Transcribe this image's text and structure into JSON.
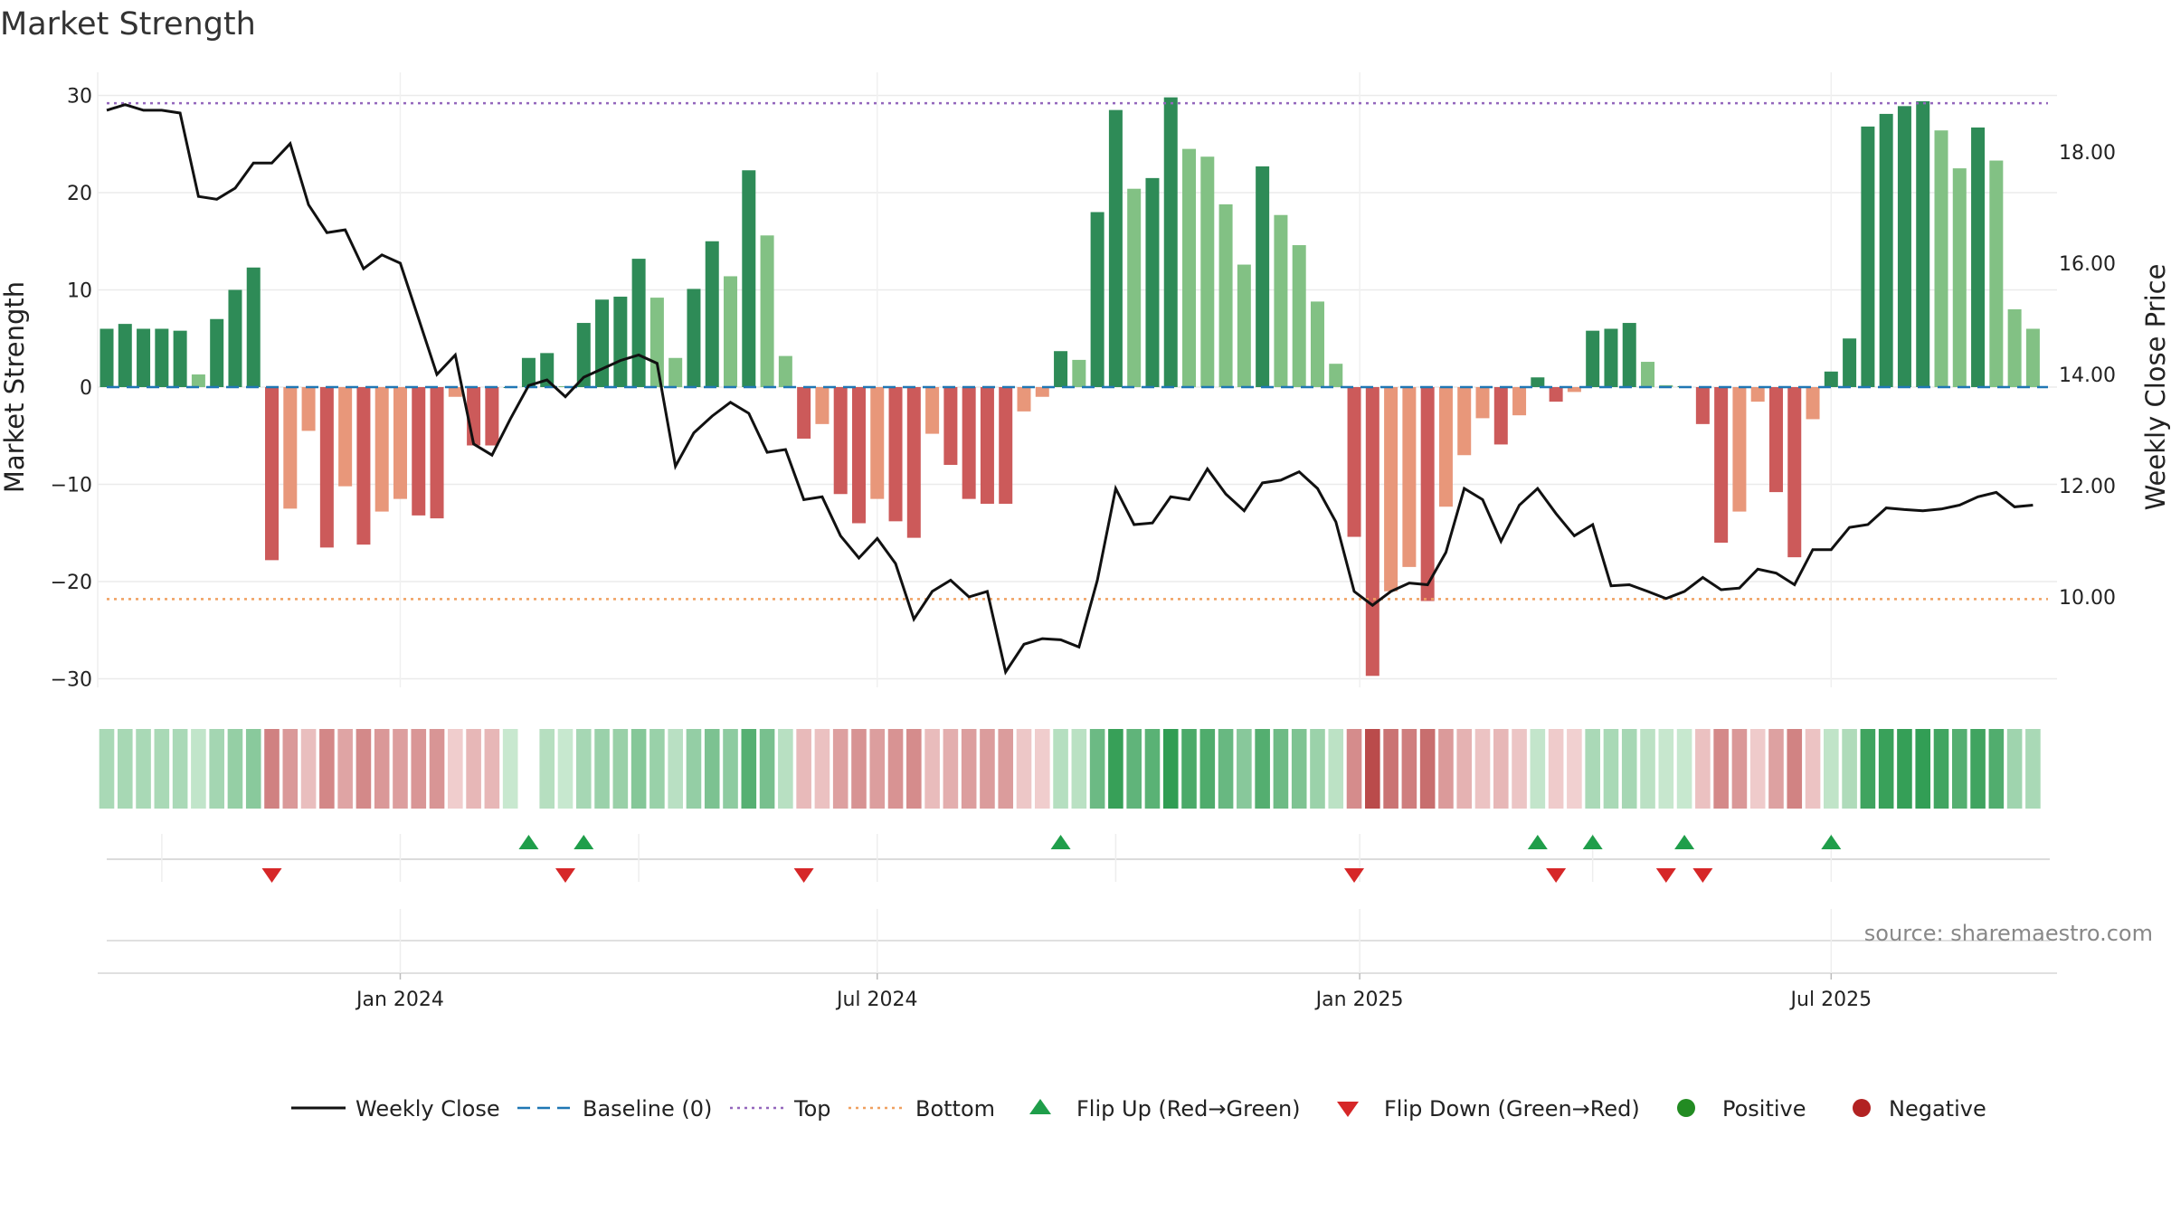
{
  "chart_data": {
    "type": "bar+line",
    "title": "Market Strength",
    "ylabel_left": "Market Strength",
    "ylabel_right": "Weekly Close Price",
    "ylim_left": [
      -35,
      32
    ],
    "ylim_right": [
      8.2,
      19.0
    ],
    "yticks_left": [
      "30",
      "20",
      "10",
      "0",
      "−10",
      "−20",
      "−30"
    ],
    "yticks_left_values": [
      30,
      20,
      10,
      0,
      -10,
      -20,
      -30
    ],
    "yticks_right": [
      "18.00",
      "16.00",
      "14.00",
      "12.00",
      "10.00"
    ],
    "yticks_right_values": [
      18,
      16,
      14,
      12,
      10
    ],
    "x_tick_labels": [
      "Jan 2024",
      "Jul 2024",
      "Jan 2025",
      "Jul 2025"
    ],
    "x_tick_weeks": [
      16,
      42,
      68.3,
      94
    ],
    "top_line": 29.2,
    "bottom_line": -21.8,
    "strength": [
      6,
      6.5,
      6,
      6,
      5.8,
      1.3,
      7,
      10,
      12.3,
      -17.8,
      -12.5,
      -4.5,
      -16.5,
      -10.2,
      -16.2,
      -12.8,
      -11.5,
      -13.2,
      -13.5,
      -1,
      -6,
      -6,
      0,
      3,
      3.5,
      0.1,
      6.6,
      9,
      9.3,
      13.2,
      9.2,
      3,
      10.1,
      15,
      11.4,
      22.3,
      15.6,
      3.2,
      -5.3,
      -3.8,
      -11,
      -14,
      -11.5,
      -13.8,
      -15.5,
      -4.8,
      -8,
      -11.5,
      -12,
      -12,
      -2.5,
      -1,
      3.7,
      2.8,
      18,
      28.5,
      20.4,
      21.5,
      29.8,
      24.5,
      23.7,
      18.8,
      12.6,
      22.7,
      17.7,
      14.6,
      8.8,
      2.4,
      -15.4,
      -29.7,
      -21,
      -18.5,
      -22,
      -12.3,
      -7,
      -3.2,
      -5.9,
      -2.9,
      1,
      -1.5,
      -0.5,
      5.8,
      6,
      6.6,
      2.6,
      0.2,
      0.1,
      -3.8,
      -16,
      -12.8,
      -1.5,
      -10.8,
      -17.5,
      -3.3,
      1.6,
      5,
      26.8,
      28.1,
      28.9,
      29.4,
      26.4,
      22.5,
      26.7,
      23.3,
      8,
      6
    ],
    "weekly_close": [
      18.75,
      18.85,
      18.75,
      18.75,
      18.7,
      17.2,
      17.15,
      17.35,
      17.8,
      17.8,
      18.15,
      17.05,
      16.55,
      16.6,
      15.9,
      16.15,
      16.0,
      15.0,
      14.0,
      14.35,
      12.75,
      12.55,
      13.2,
      13.8,
      13.9,
      13.6,
      13.95,
      14.1,
      14.25,
      14.35,
      14.2,
      12.35,
      12.95,
      13.25,
      13.5,
      13.3,
      12.6,
      12.65,
      11.75,
      11.8,
      11.1,
      10.7,
      11.05,
      10.6,
      9.6,
      10.1,
      10.3,
      10.0,
      10.1,
      8.65,
      9.15,
      9.25,
      9.23,
      9.1,
      10.3,
      11.95,
      11.3,
      11.33,
      11.8,
      11.75,
      12.3,
      11.85,
      11.55,
      12.05,
      12.1,
      12.25,
      11.95,
      11.35,
      10.1,
      9.85,
      10.1,
      10.25,
      10.22,
      10.8,
      11.95,
      11.75,
      11.0,
      11.65,
      11.95,
      11.5,
      11.1,
      11.3,
      10.2,
      10.22,
      10.1,
      9.97,
      10.1,
      10.35,
      10.13,
      10.16,
      10.5,
      10.43,
      10.22,
      10.85,
      10.85,
      11.25,
      11.3,
      11.6,
      11.57,
      11.55,
      11.58,
      11.65,
      11.8,
      11.88,
      11.62,
      11.65
    ],
    "heat_strip_first_week_blank": 23,
    "flip_up_weeks": [
      23,
      26,
      52,
      78,
      81,
      86,
      94
    ],
    "flip_down_weeks": [
      9,
      25,
      38,
      68,
      79,
      85,
      87
    ],
    "positive_color": "#2e8b57",
    "positive_light_color": "#82c184",
    "negative_color": "#cc5a5a",
    "negative_light_color": "#e8977a",
    "line_color": "#111111",
    "baseline_color": "#1f77b4",
    "top_color": "#9467bd",
    "bottom_color": "#f0a060",
    "flip_up_color": "#1f9e4a",
    "flip_down_color": "#d62728",
    "legend": [
      {
        "label": "Weekly Close",
        "icon": "black-line"
      },
      {
        "label": "Baseline (0)",
        "icon": "blue-dash"
      },
      {
        "label": "Top",
        "icon": "purple-dots"
      },
      {
        "label": "Bottom",
        "icon": "orange-dots"
      },
      {
        "label": "Flip Up (Red→Green)",
        "icon": "green-up-triangle"
      },
      {
        "label": "Flip Down (Green→Red)",
        "icon": "red-down-triangle"
      },
      {
        "label": "Positive",
        "icon": "green-dot"
      },
      {
        "label": "Negative",
        "icon": "red-dot"
      }
    ],
    "source": "source: sharemaestro.com"
  }
}
